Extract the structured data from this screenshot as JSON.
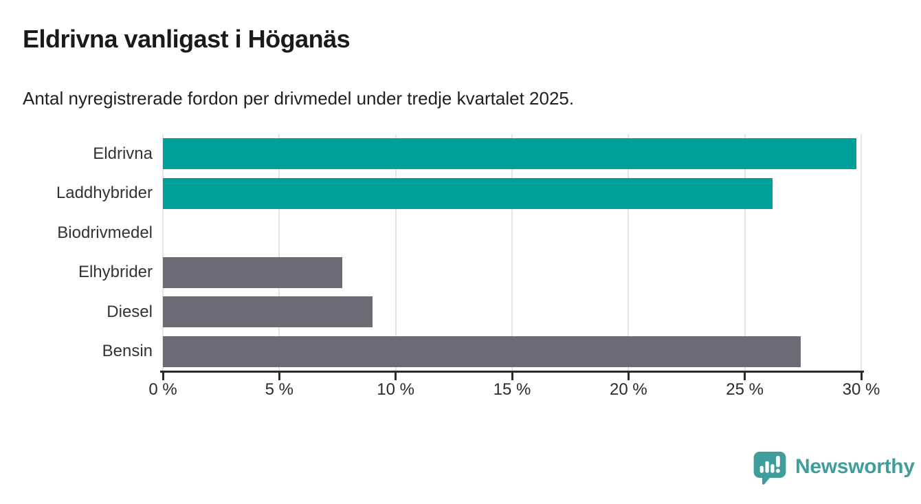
{
  "header": {
    "title": "Eldrivna vanligast i Höganäs",
    "subtitle": "Antal nyregistrerade fordon per drivmedel under tredje kvartalet 2025."
  },
  "chart_data": {
    "type": "bar",
    "orientation": "horizontal",
    "title": "Eldrivna vanligast i Höganäs",
    "subtitle": "Antal nyregistrerade fordon per drivmedel under tredje kvartalet 2025.",
    "categories": [
      "Eldrivna",
      "Laddhybrider",
      "Biodrivmedel",
      "Elhybrider",
      "Diesel",
      "Bensin"
    ],
    "values": [
      29.8,
      26.2,
      0,
      7.7,
      9.0,
      27.4
    ],
    "unit": "%",
    "xlim": [
      0,
      30
    ],
    "x_tick_values": [
      0,
      5,
      10,
      15,
      20,
      25,
      30
    ],
    "x_tick_labels": [
      "0 %",
      "5 %",
      "10 %",
      "15 %",
      "20 %",
      "25 %",
      "30 %"
    ],
    "bar_colors": [
      "#00a09a",
      "#00a09a",
      "#00a09a",
      "#6c6a73",
      "#6c6a73",
      "#6c6a73"
    ],
    "grid": true,
    "legend": "none",
    "value_labels": false
  },
  "colors": {
    "teal_bar": "#00a09a",
    "gray_bar": "#6c6a73",
    "gridline": "#e4e4e4",
    "axis": "#2b2b2b",
    "title_text": "#1a1a1a",
    "label_text": "#333333",
    "brand": "#3f9e9c"
  },
  "footer": {
    "brand": "Newsworthy",
    "logo_icon": "newsworthy-speech-bubble-bar-chart-icon"
  }
}
